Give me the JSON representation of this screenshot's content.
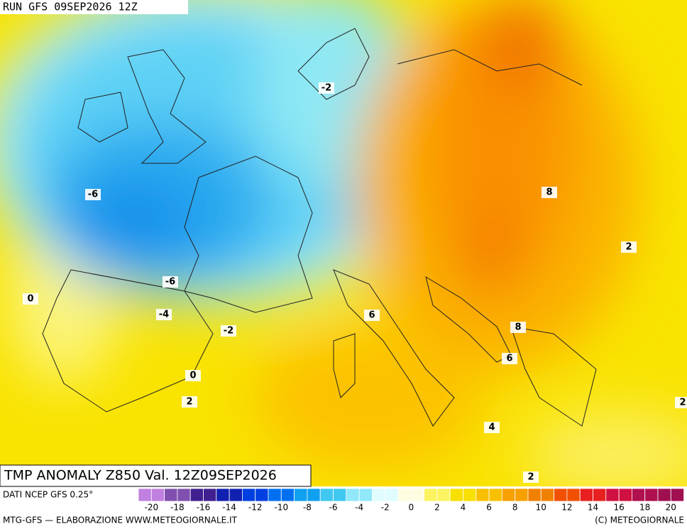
{
  "header": {
    "run": "RUN GFS 09SEP2026 12Z"
  },
  "map": {
    "title": "TMP ANOMALY Z850 Val. 12Z09SEP2026",
    "contour_labels": [
      "-2",
      "-6",
      "-6",
      "-4",
      "-2",
      "0",
      "0",
      "2",
      "6",
      "8",
      "8",
      "6",
      "2",
      "4",
      "2",
      "2"
    ]
  },
  "legend": {
    "source": "DATI NCEP GFS 0.25°",
    "ticks": [
      "-20",
      "-18",
      "-16",
      "-14",
      "-12",
      "-10",
      "-8",
      "-6",
      "-4",
      "-2",
      "0",
      "2",
      "4",
      "6",
      "8",
      "10",
      "12",
      "14",
      "16",
      "18",
      "20"
    ]
  },
  "footer": {
    "left": "MTG-GFS — ELABORAZIONE WWW.METEOGIORNALE.IT",
    "right": "(C) METEOGIORNALE"
  }
}
